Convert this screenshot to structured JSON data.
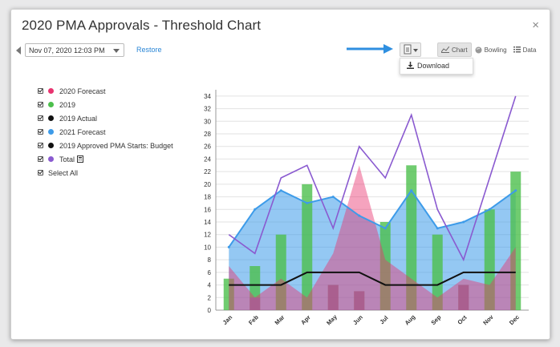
{
  "dialog": {
    "title": "2020 PMA Approvals - Threshold Chart",
    "close_glyph": "×"
  },
  "toolbar": {
    "date_value": "Nov 07, 2020 12:03 PM",
    "restore_label": "Restore",
    "download_label": "Download",
    "views": [
      {
        "label": "Chart",
        "icon": "line-chart-icon",
        "active": true
      },
      {
        "label": "Bowling",
        "icon": "bowling-ball-icon",
        "active": false
      },
      {
        "label": "Data",
        "icon": "list-icon",
        "active": false
      }
    ]
  },
  "colors": {
    "forecast_2020": "#e8336f",
    "y2019": "#4cbf4c",
    "actual_2019": "#111111",
    "forecast_2021": "#3d9be9",
    "budget_2019": "#111111",
    "total": "#8a5ad0",
    "arrow": "#2f8fe0",
    "link": "#2a86d6"
  },
  "legend": {
    "items": [
      {
        "label": "2020 Forecast",
        "color": "#e8336f"
      },
      {
        "label": "2019",
        "color": "#4cbf4c"
      },
      {
        "label": "2019 Actual",
        "color": "#111111"
      },
      {
        "label": "2021 Forecast",
        "color": "#3d9be9"
      },
      {
        "label": "2019 Approved PMA Starts: Budget",
        "color": "#111111"
      },
      {
        "label": "Total",
        "color": "#8a5ad0",
        "icon": "calculator-icon"
      }
    ],
    "select_all_label": "Select All"
  },
  "chart_data": {
    "type": "bar",
    "categories": [
      "Jan",
      "Feb",
      "Mar",
      "Apr",
      "May",
      "Jun",
      "Jul",
      "Aug",
      "Sep",
      "Oct",
      "Nov",
      "Dec"
    ],
    "ylim": [
      0,
      35
    ],
    "yticks": [
      0,
      2,
      4,
      6,
      8,
      10,
      12,
      14,
      16,
      18,
      20,
      22,
      24,
      26,
      28,
      30,
      32,
      34
    ],
    "grid": true,
    "series": [
      {
        "name": "2020 Forecast",
        "type": "area",
        "color": "#e8336f",
        "values": [
          7,
          2,
          5,
          2,
          9,
          23,
          8,
          5,
          2,
          5,
          4,
          10
        ]
      },
      {
        "name": "2019",
        "type": "bar",
        "color": "#4cbf4c",
        "values": [
          5,
          7,
          12,
          20,
          4,
          3,
          14,
          23,
          12,
          4,
          16,
          22
        ]
      },
      {
        "name": "2019 Actual",
        "type": "line",
        "color": "#111111",
        "values": [
          null,
          null,
          null,
          null,
          null,
          null,
          null,
          null,
          null,
          null,
          null,
          null
        ]
      },
      {
        "name": "2021 Forecast",
        "type": "area",
        "color": "#3d9be9",
        "values": [
          10,
          16,
          19,
          17,
          18,
          15,
          13,
          19,
          13,
          14,
          16,
          19
        ]
      },
      {
        "name": "2019 Approved PMA Starts: Budget",
        "type": "line",
        "color": "#111111",
        "values": [
          4,
          4,
          4,
          6,
          6,
          6,
          4,
          4,
          4,
          6,
          6,
          6
        ]
      },
      {
        "name": "Total",
        "type": "line",
        "color": "#8a5ad0",
        "values": [
          12,
          9,
          21,
          23,
          13,
          26,
          21,
          31,
          16,
          8,
          21,
          34
        ]
      }
    ],
    "extra_series_purple_bars": [
      null,
      2,
      null,
      null,
      4,
      3,
      null,
      null,
      null,
      4,
      null,
      null
    ]
  }
}
